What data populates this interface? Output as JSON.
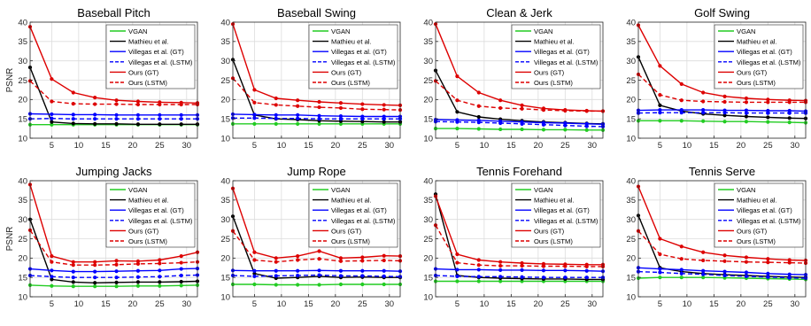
{
  "figure": {
    "legend_labels": [
      "VGAN",
      "Mathieu et al.",
      "Villegas et al. (GT)",
      "Villegas et al. (LSTM)",
      "Ours (GT)",
      "Ours (LSTM)"
    ],
    "colors": {
      "vgan": "#22cc22",
      "mathieu": "#000000",
      "villegas": "#0000ff",
      "ours": "#dd0000"
    }
  },
  "chart_data": [
    {
      "type": "line",
      "title": "Baseball Pitch",
      "ylabel": "PSNR",
      "xlabel": "",
      "xlim": [
        1,
        32
      ],
      "ylim": [
        10,
        40
      ],
      "xticks": [
        5,
        10,
        15,
        20,
        25,
        30
      ],
      "yticks": [
        10,
        15,
        20,
        25,
        30,
        35,
        40
      ],
      "grid": true,
      "legend": "top-right",
      "x": [
        1,
        5,
        9,
        13,
        17,
        21,
        25,
        29,
        32
      ],
      "series": [
        {
          "name": "VGAN",
          "key": "vgan",
          "values": [
            13.5,
            13.5,
            13.5,
            13.5,
            13.5,
            13.5,
            13.5,
            13.5,
            13.5
          ]
        },
        {
          "name": "Mathieu et al.",
          "key": "mathieu",
          "values": [
            28.3,
            14.2,
            13.8,
            13.7,
            13.7,
            13.6,
            13.6,
            13.6,
            13.6
          ]
        },
        {
          "name": "Villegas et al. (GT)",
          "key": "villegas_gt",
          "values": [
            16.3,
            16.2,
            16.1,
            16.1,
            16.0,
            16.0,
            16.0,
            16.0,
            16.0
          ]
        },
        {
          "name": "Villegas et al. (LSTM)",
          "key": "villegas_lstm",
          "values": [
            15.0,
            15.1,
            15.0,
            15.0,
            15.0,
            15.0,
            15.0,
            15.0,
            15.0
          ]
        },
        {
          "name": "Ours (GT)",
          "key": "ours_gt",
          "values": [
            38.8,
            25.3,
            21.8,
            20.5,
            19.8,
            19.5,
            19.3,
            19.2,
            19.1
          ]
        },
        {
          "name": "Ours (LSTM)",
          "key": "ours_lstm",
          "values": [
            24.8,
            19.5,
            18.9,
            18.8,
            18.8,
            18.7,
            18.7,
            18.7,
            18.7
          ]
        }
      ]
    },
    {
      "type": "line",
      "title": "Baseball Swing",
      "ylabel": "",
      "xlabel": "",
      "xlim": [
        1,
        32
      ],
      "ylim": [
        10,
        40
      ],
      "xticks": [
        5,
        10,
        15,
        20,
        25,
        30
      ],
      "yticks": [
        10,
        15,
        20,
        25,
        30,
        35,
        40
      ],
      "grid": true,
      "legend": "top-right",
      "x": [
        1,
        5,
        9,
        13,
        17,
        21,
        25,
        29,
        32
      ],
      "series": [
        {
          "name": "VGAN",
          "key": "vgan",
          "values": [
            13.7,
            13.7,
            13.7,
            13.7,
            13.7,
            13.7,
            13.7,
            13.7,
            13.7
          ]
        },
        {
          "name": "Mathieu et al.",
          "key": "mathieu",
          "values": [
            30.3,
            16.0,
            15.0,
            14.8,
            14.5,
            14.4,
            14.3,
            14.2,
            14.2
          ]
        },
        {
          "name": "Villegas et al. (GT)",
          "key": "villegas_gt",
          "values": [
            16.2,
            16.1,
            16.0,
            16.0,
            15.8,
            15.7,
            15.6,
            15.6,
            15.6
          ]
        },
        {
          "name": "Villegas et al. (LSTM)",
          "key": "villegas_lstm",
          "values": [
            15.2,
            15.2,
            15.1,
            15.1,
            15.0,
            15.0,
            15.0,
            15.0,
            15.0
          ]
        },
        {
          "name": "Ours (GT)",
          "key": "ours_gt",
          "values": [
            39.5,
            22.5,
            20.3,
            19.8,
            19.4,
            19.1,
            18.8,
            18.6,
            18.5
          ]
        },
        {
          "name": "Ours (LSTM)",
          "key": "ours_lstm",
          "values": [
            25.5,
            19.2,
            18.6,
            18.3,
            18.0,
            17.8,
            17.5,
            17.4,
            17.3
          ]
        }
      ]
    },
    {
      "type": "line",
      "title": "Clean & Jerk",
      "ylabel": "",
      "xlabel": "",
      "xlim": [
        1,
        32
      ],
      "ylim": [
        10,
        40
      ],
      "xticks": [
        5,
        10,
        15,
        20,
        25,
        30
      ],
      "yticks": [
        10,
        15,
        20,
        25,
        30,
        35,
        40
      ],
      "grid": true,
      "legend": "top-right",
      "x": [
        1,
        5,
        9,
        13,
        17,
        21,
        25,
        29,
        32
      ],
      "series": [
        {
          "name": "VGAN",
          "key": "vgan",
          "values": [
            12.5,
            12.5,
            12.4,
            12.3,
            12.3,
            12.2,
            12.2,
            12.1,
            12.1
          ]
        },
        {
          "name": "Mathieu et al.",
          "key": "mathieu",
          "values": [
            27.5,
            16.8,
            15.5,
            14.9,
            14.5,
            14.2,
            14.0,
            13.8,
            13.7
          ]
        },
        {
          "name": "Villegas et al. (GT)",
          "key": "villegas_gt",
          "values": [
            14.8,
            14.7,
            14.6,
            14.4,
            14.2,
            14.0,
            13.9,
            13.7,
            13.6
          ]
        },
        {
          "name": "Villegas et al. (LSTM)",
          "key": "villegas_lstm",
          "values": [
            14.3,
            14.2,
            14.1,
            13.9,
            13.7,
            13.5,
            13.3,
            13.1,
            13.0
          ]
        },
        {
          "name": "Ours (GT)",
          "key": "ours_gt",
          "values": [
            39.5,
            26.0,
            21.8,
            19.8,
            18.5,
            17.7,
            17.3,
            17.1,
            17.0
          ]
        },
        {
          "name": "Ours (LSTM)",
          "key": "ours_lstm",
          "values": [
            24.8,
            19.8,
            18.3,
            17.8,
            17.6,
            17.3,
            17.1,
            17.0,
            17.0
          ]
        }
      ]
    },
    {
      "type": "line",
      "title": "Golf Swing",
      "ylabel": "",
      "xlabel": "",
      "xlim": [
        1,
        32
      ],
      "ylim": [
        10,
        40
      ],
      "xticks": [
        5,
        10,
        15,
        20,
        25,
        30
      ],
      "yticks": [
        10,
        15,
        20,
        25,
        30,
        35,
        40
      ],
      "grid": true,
      "legend": "top-right",
      "x": [
        1,
        5,
        9,
        13,
        17,
        21,
        25,
        29,
        32
      ],
      "series": [
        {
          "name": "VGAN",
          "key": "vgan",
          "values": [
            14.5,
            14.5,
            14.5,
            14.4,
            14.3,
            14.3,
            14.2,
            14.1,
            14.0
          ]
        },
        {
          "name": "Mathieu et al.",
          "key": "mathieu",
          "values": [
            31.0,
            18.5,
            17.0,
            16.3,
            15.9,
            15.6,
            15.4,
            15.2,
            15.1
          ]
        },
        {
          "name": "Villegas et al. (GT)",
          "key": "villegas_gt",
          "values": [
            17.2,
            17.3,
            17.3,
            17.3,
            17.2,
            17.2,
            17.1,
            17.1,
            17.0
          ]
        },
        {
          "name": "Villegas et al. (LSTM)",
          "key": "villegas_lstm",
          "values": [
            16.5,
            16.6,
            16.6,
            16.6,
            16.6,
            16.5,
            16.5,
            16.5,
            16.5
          ]
        },
        {
          "name": "Ours (GT)",
          "key": "ours_gt",
          "values": [
            39.2,
            28.7,
            24.0,
            21.8,
            20.8,
            20.3,
            20.0,
            19.8,
            19.7
          ]
        },
        {
          "name": "Ours (LSTM)",
          "key": "ours_lstm",
          "values": [
            26.5,
            21.2,
            19.8,
            19.5,
            19.4,
            19.3,
            19.3,
            19.3,
            19.3
          ]
        }
      ]
    },
    {
      "type": "line",
      "title": "Jumping Jacks",
      "ylabel": "PSNR",
      "xlabel": "",
      "xlim": [
        1,
        32
      ],
      "ylim": [
        10,
        40
      ],
      "xticks": [
        5,
        10,
        15,
        20,
        25,
        30
      ],
      "yticks": [
        10,
        15,
        20,
        25,
        30,
        35,
        40
      ],
      "grid": true,
      "legend": "top-right",
      "x": [
        1,
        5,
        9,
        13,
        17,
        21,
        25,
        29,
        32
      ],
      "series": [
        {
          "name": "VGAN",
          "key": "vgan",
          "values": [
            13.0,
            12.8,
            12.7,
            12.7,
            12.7,
            12.8,
            12.8,
            12.9,
            13.0
          ]
        },
        {
          "name": "Mathieu et al.",
          "key": "mathieu",
          "values": [
            30.0,
            14.5,
            13.8,
            13.6,
            13.7,
            13.8,
            13.8,
            13.9,
            14.0
          ]
        },
        {
          "name": "Villegas et al. (GT)",
          "key": "villegas_gt",
          "values": [
            17.2,
            16.8,
            16.5,
            16.5,
            16.6,
            16.7,
            16.8,
            17.2,
            17.3
          ]
        },
        {
          "name": "Villegas et al. (LSTM)",
          "key": "villegas_lstm",
          "values": [
            15.5,
            15.2,
            15.0,
            15.0,
            15.0,
            15.1,
            15.2,
            15.5,
            15.6
          ]
        },
        {
          "name": "Ours (GT)",
          "key": "ours_gt",
          "values": [
            39.0,
            20.5,
            19.0,
            19.0,
            19.3,
            19.2,
            19.5,
            20.5,
            21.5
          ]
        },
        {
          "name": "Ours (LSTM)",
          "key": "ours_lstm",
          "values": [
            27.2,
            19.0,
            18.2,
            18.2,
            18.3,
            18.5,
            18.6,
            18.8,
            19.0
          ]
        }
      ]
    },
    {
      "type": "line",
      "title": "Jump Rope",
      "ylabel": "",
      "xlabel": "",
      "xlim": [
        1,
        32
      ],
      "ylim": [
        10,
        40
      ],
      "xticks": [
        5,
        10,
        15,
        20,
        25,
        30
      ],
      "yticks": [
        10,
        15,
        20,
        25,
        30,
        35,
        40
      ],
      "grid": true,
      "legend": "top-right",
      "x": [
        1,
        5,
        9,
        13,
        17,
        21,
        25,
        29,
        32
      ],
      "series": [
        {
          "name": "VGAN",
          "key": "vgan",
          "values": [
            13.2,
            13.2,
            13.1,
            13.1,
            13.1,
            13.2,
            13.2,
            13.2,
            13.2
          ]
        },
        {
          "name": "Mathieu et al.",
          "key": "mathieu",
          "values": [
            30.8,
            16.0,
            14.8,
            15.0,
            15.3,
            15.0,
            15.1,
            15.0,
            15.0
          ]
        },
        {
          "name": "Villegas et al. (GT)",
          "key": "villegas_gt",
          "values": [
            16.8,
            16.7,
            16.7,
            16.7,
            16.8,
            16.7,
            16.7,
            16.7,
            16.6
          ]
        },
        {
          "name": "Villegas et al. (LSTM)",
          "key": "villegas_lstm",
          "values": [
            15.5,
            15.3,
            15.4,
            15.5,
            15.6,
            15.4,
            15.4,
            15.3,
            15.2
          ]
        },
        {
          "name": "Ours (GT)",
          "key": "ours_gt",
          "values": [
            38.0,
            21.5,
            20.0,
            20.5,
            21.8,
            20.0,
            20.2,
            20.6,
            20.5
          ]
        },
        {
          "name": "Ours (LSTM)",
          "key": "ours_lstm",
          "values": [
            27.0,
            19.5,
            19.0,
            19.5,
            19.8,
            19.2,
            19.3,
            19.4,
            19.3
          ]
        }
      ]
    },
    {
      "type": "line",
      "title": "Tennis Forehand",
      "ylabel": "",
      "xlabel": "",
      "xlim": [
        1,
        32
      ],
      "ylim": [
        10,
        40
      ],
      "xticks": [
        5,
        10,
        15,
        20,
        25,
        30
      ],
      "yticks": [
        10,
        15,
        20,
        25,
        30,
        35,
        40
      ],
      "grid": true,
      "legend": "top-right",
      "x": [
        1,
        5,
        9,
        13,
        17,
        21,
        25,
        29,
        32
      ],
      "series": [
        {
          "name": "VGAN",
          "key": "vgan",
          "values": [
            14.0,
            14.0,
            14.0,
            14.0,
            14.0,
            14.0,
            14.0,
            14.0,
            14.0
          ]
        },
        {
          "name": "Mathieu et al.",
          "key": "mathieu",
          "values": [
            36.5,
            15.5,
            15.0,
            14.8,
            14.7,
            14.6,
            14.6,
            14.5,
            14.5
          ]
        },
        {
          "name": "Villegas et al. (GT)",
          "key": "villegas_gt",
          "values": [
            17.2,
            17.0,
            17.0,
            16.9,
            16.9,
            16.8,
            16.8,
            16.7,
            16.6
          ]
        },
        {
          "name": "Villegas et al. (LSTM)",
          "key": "villegas_lstm",
          "values": [
            15.5,
            15.3,
            15.2,
            15.2,
            15.1,
            15.0,
            15.0,
            15.0,
            15.0
          ]
        },
        {
          "name": "Ours (GT)",
          "key": "ours_gt",
          "values": [
            36.0,
            21.0,
            19.5,
            19.0,
            18.7,
            18.5,
            18.4,
            18.3,
            18.3
          ]
        },
        {
          "name": "Ours (LSTM)",
          "key": "ours_lstm",
          "values": [
            28.5,
            18.8,
            18.2,
            18.0,
            18.0,
            17.9,
            17.9,
            17.8,
            17.8
          ]
        }
      ]
    },
    {
      "type": "line",
      "title": "Tennis Serve",
      "ylabel": "",
      "xlabel": "",
      "xlim": [
        1,
        32
      ],
      "ylim": [
        10,
        40
      ],
      "xticks": [
        5,
        10,
        15,
        20,
        25,
        30
      ],
      "yticks": [
        10,
        15,
        20,
        25,
        30,
        35,
        40
      ],
      "grid": true,
      "legend": "top-right",
      "x": [
        1,
        5,
        9,
        13,
        17,
        21,
        25,
        29,
        32
      ],
      "series": [
        {
          "name": "VGAN",
          "key": "vgan",
          "values": [
            14.8,
            15.0,
            15.0,
            15.0,
            14.9,
            14.8,
            14.7,
            14.6,
            14.5
          ]
        },
        {
          "name": "Mathieu et al.",
          "key": "mathieu",
          "values": [
            31.0,
            17.5,
            16.5,
            16.0,
            15.7,
            15.5,
            15.3,
            15.1,
            15.0
          ]
        },
        {
          "name": "Villegas et al. (GT)",
          "key": "villegas_gt",
          "values": [
            17.5,
            17.2,
            17.0,
            16.7,
            16.5,
            16.3,
            16.0,
            15.8,
            15.7
          ]
        },
        {
          "name": "Villegas et al. (LSTM)",
          "key": "villegas_lstm",
          "values": [
            16.5,
            16.3,
            16.0,
            15.8,
            15.5,
            15.3,
            15.1,
            14.9,
            14.8
          ]
        },
        {
          "name": "Ours (GT)",
          "key": "ours_gt",
          "values": [
            38.5,
            25.0,
            23.0,
            21.5,
            20.7,
            20.2,
            19.8,
            19.5,
            19.4
          ]
        },
        {
          "name": "Ours (LSTM)",
          "key": "ours_lstm",
          "values": [
            27.0,
            21.0,
            19.8,
            19.4,
            19.2,
            19.0,
            18.9,
            18.8,
            18.7
          ]
        }
      ]
    }
  ]
}
